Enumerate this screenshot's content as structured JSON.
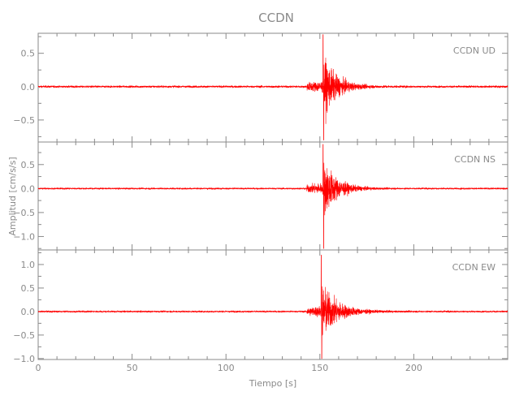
{
  "chart_data": {
    "type": "line",
    "title": "CCDN",
    "xlabel": "Tiempo [s]",
    "ylabel": "Amplitud [cm/s/s]",
    "xlim": [
      0,
      250
    ],
    "xticks": [
      0,
      50,
      100,
      150,
      200
    ],
    "xminor_step": 10,
    "grid": false,
    "line_color": "#ff0000",
    "axis_color": "#8a8a8a",
    "panels": [
      {
        "label": "CCDN   UD",
        "ylim": [
          -0.83,
          0.8
        ],
        "yticks": [
          -0.5,
          0.0,
          0.5
        ],
        "yminor_step": 0.25,
        "onset_s": 143,
        "peak_s": 152,
        "max": 0.78,
        "min": -0.8,
        "noise": 0.012,
        "decay_s": 7
      },
      {
        "label": "CCDN   NS",
        "ylim": [
          -1.28,
          0.97
        ],
        "yticks": [
          -1.0,
          -0.5,
          0.0,
          0.5
        ],
        "yminor_step": 0.25,
        "onset_s": 143,
        "peak_s": 152,
        "max": 0.92,
        "min": -1.25,
        "noise": 0.012,
        "decay_s": 7
      },
      {
        "label": "CCDN   EW",
        "ylim": [
          -1.02,
          1.31
        ],
        "yticks": [
          -1.0,
          -0.5,
          0.0,
          0.5,
          1.0
        ],
        "yminor_step": 0.25,
        "onset_s": 143,
        "peak_s": 151,
        "max": 1.2,
        "min": -1.0,
        "noise": 0.014,
        "decay_s": 8
      }
    ]
  }
}
